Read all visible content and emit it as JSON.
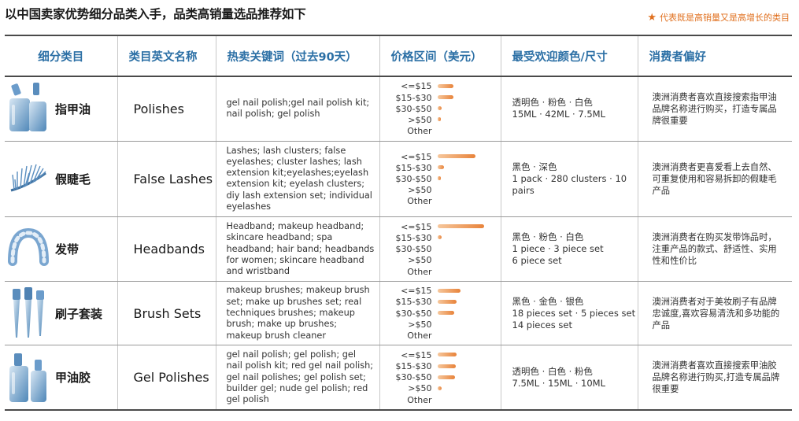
{
  "title": "以中国卖家优势细分品类入手，品类高销量选品推荐如下",
  "legend_note": "代表既是高销量又是高增长的类目",
  "colors": {
    "header": "#2b6fa5",
    "accent": "#e0701f",
    "bar": "#e8833a"
  },
  "headers": {
    "category": "细分类目",
    "english": "类目英文名称",
    "keywords": "热卖关键词（过去90天）",
    "price": "价格区间（美元）",
    "color_size": "最受欢迎颜色/尺寸",
    "preference": "消费者偏好"
  },
  "price_labels": [
    "<=$15",
    "$15-$30",
    "$30-$50",
    ">$50",
    "Other"
  ],
  "rows": [
    {
      "icon": "nail-polish-bottles-icon",
      "name": "指甲油",
      "english": "Polishes",
      "keywords": "gel nail polish;gel nail polish kit; nail polish; gel polish",
      "price_shares": [
        0.26,
        0.26,
        0.07,
        0.05,
        0
      ],
      "color_size_lines": [
        "透明色 · 粉色 · 白色",
        "15ML · 42ML · 7.5ML"
      ],
      "preference": "澳洲消费者喜欢直接搜索指甲油品牌名称进行购买，打造专属品牌很重要"
    },
    {
      "icon": "false-lashes-icon",
      "name": "假睫毛",
      "english": "False Lashes",
      "keywords": "Lashes; lash clusters; false eyelashes; cluster lashes; lash extension kit;eyelashes;eyelash extension kit; eyelash clusters; diy lash extension set; individual eyelashes",
      "price_shares": [
        0.62,
        0.1,
        0.02,
        0,
        0
      ],
      "color_size_lines": [
        "黑色 · 深色",
        "1 pack · 280 clusters · 10 pairs"
      ],
      "preference": "澳洲消费者更喜爱看上去自然、可重复使用和容易拆卸的假睫毛产品"
    },
    {
      "icon": "headband-icon",
      "name": "发带",
      "english": "Headbands",
      "keywords": "Headband; makeup headband; skincare headband; spa headband; hair band; headbands for women; skincare headband and wristband",
      "price_shares": [
        0.75,
        0.07,
        0,
        0,
        0
      ],
      "color_size_lines": [
        "黑色 · 粉色 · 白色",
        "1 piece · 3 piece set",
        "6 piece set"
      ],
      "preference": "澳洲消费者在购买发带饰品时，注重产品的款式、舒适性、实用性和性价比"
    },
    {
      "icon": "makeup-brushes-icon",
      "name": "刷子套装",
      "english": "Brush Sets",
      "keywords": "makeup brushes; makeup brush set; make up brushes set; real techniques brushes; makeup brush; make up brushes; makeup brush cleaner",
      "price_shares": [
        0.37,
        0.31,
        0.27,
        0,
        0
      ],
      "color_size_lines": [
        "黑色 · 金色 · 银色",
        "18 pieces set · 5 pieces set",
        "14 pieces set"
      ],
      "preference": "澳洲消费者对于美妆刷子有品牌忠诚度,喜欢容易清洗和多功能的产品"
    },
    {
      "icon": "gel-polish-bottles-icon",
      "name": "甲油胶",
      "english": "Gel Polishes",
      "keywords": "gel nail polish; gel polish; gel nail polish kit; red gel nail polish; gel nail polishes; gel polish set; builder gel; nude gel polish; red gel polish",
      "price_shares": [
        0.31,
        0.3,
        0.28,
        0.07,
        0
      ],
      "color_size_lines": [
        "透明色 · 白色 · 粉色",
        "7.5ML · 15ML · 10ML"
      ],
      "preference": "澳洲消费者喜欢直接搜索甲油胶品牌名称进行购买,打造专属品牌很重要"
    }
  ]
}
